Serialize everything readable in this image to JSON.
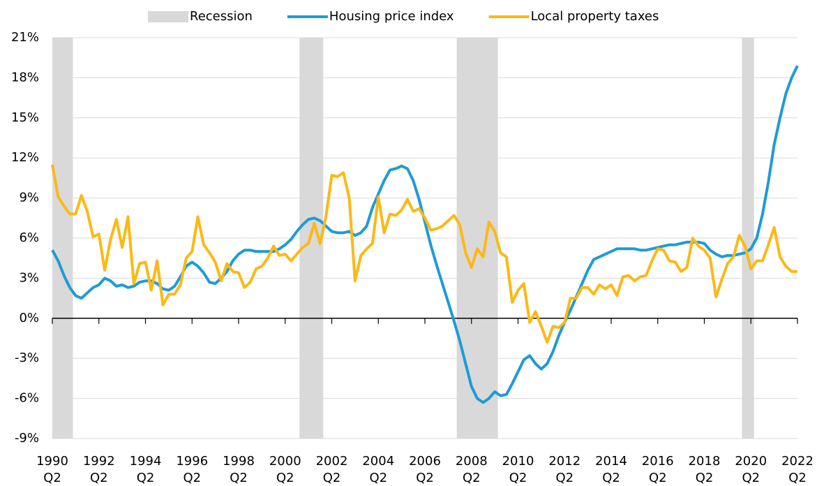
{
  "chart_data": {
    "type": "line",
    "categories": [
      "1990\nQ2",
      null,
      null,
      null,
      null,
      null,
      null,
      null,
      "1992\nQ2",
      null,
      null,
      null,
      null,
      null,
      null,
      null,
      "1994\nQ2",
      null,
      null,
      null,
      null,
      null,
      null,
      null,
      "1996\nQ2",
      null,
      null,
      null,
      null,
      null,
      null,
      null,
      "1998\nQ2",
      null,
      null,
      null,
      null,
      null,
      null,
      null,
      "2000\nQ2",
      null,
      null,
      null,
      null,
      null,
      null,
      null,
      "2002\nQ2",
      null,
      null,
      null,
      null,
      null,
      null,
      null,
      "2004\nQ2",
      null,
      null,
      null,
      null,
      null,
      null,
      null,
      "2006\nQ2",
      null,
      null,
      null,
      null,
      null,
      null,
      null,
      "2008\nQ2",
      null,
      null,
      null,
      null,
      null,
      null,
      null,
      "2010\nQ2",
      null,
      null,
      null,
      null,
      null,
      null,
      null,
      "2012\nQ2",
      null,
      null,
      null,
      null,
      null,
      null,
      null,
      "2014\nQ2",
      null,
      null,
      null,
      null,
      null,
      null,
      null,
      "2016\nQ2",
      null,
      null,
      null,
      null,
      null,
      null,
      null,
      "2018\nQ2",
      null,
      null,
      null,
      null,
      null,
      null,
      null,
      "2020\nQ2",
      null,
      null,
      null,
      null,
      null,
      null,
      null,
      "2022\nQ2"
    ],
    "series": [
      {
        "name": "Recession",
        "color": "#d9d9d9",
        "type": "bar",
        "axis": "y2",
        "values": [
          1,
          1,
          1,
          1,
          null,
          null,
          null,
          null,
          null,
          null,
          null,
          null,
          null,
          null,
          null,
          null,
          null,
          null,
          null,
          null,
          null,
          null,
          null,
          null,
          null,
          null,
          null,
          null,
          null,
          null,
          null,
          null,
          null,
          null,
          null,
          null,
          null,
          null,
          null,
          null,
          null,
          null,
          null,
          1,
          1,
          1,
          1,
          null,
          null,
          null,
          null,
          null,
          null,
          null,
          null,
          null,
          null,
          null,
          null,
          null,
          null,
          null,
          null,
          null,
          null,
          null,
          null,
          null,
          null,
          null,
          1,
          1,
          1,
          1,
          1,
          1,
          1,
          null,
          null,
          null,
          null,
          null,
          null,
          null,
          null,
          null,
          null,
          null,
          null,
          null,
          null,
          null,
          null,
          null,
          null,
          null,
          null,
          null,
          null,
          null,
          null,
          null,
          null,
          null,
          null,
          null,
          null,
          null,
          null,
          null,
          null,
          null,
          null,
          null,
          null,
          null,
          null,
          null,
          null,
          1,
          1,
          null,
          null,
          null,
          null,
          null,
          null,
          null,
          null
        ]
      },
      {
        "name": "Housing price index",
        "color": "#1e9bd7",
        "type": "line",
        "values": [
          5.1,
          4.3,
          3.2,
          2.3,
          1.7,
          1.5,
          1.9,
          2.3,
          2.5,
          3.0,
          2.8,
          2.4,
          2.5,
          2.3,
          2.4,
          2.7,
          2.8,
          2.8,
          2.6,
          2.2,
          2.1,
          2.4,
          3.1,
          3.9,
          4.2,
          3.9,
          3.4,
          2.7,
          2.6,
          3.0,
          3.5,
          4.3,
          4.8,
          5.1,
          5.1,
          5.0,
          5.0,
          5.0,
          5.0,
          5.2,
          5.5,
          5.9,
          6.5,
          7.0,
          7.4,
          7.5,
          7.3,
          6.9,
          6.5,
          6.4,
          6.4,
          6.5,
          6.2,
          6.4,
          6.9,
          8.3,
          9.3,
          10.3,
          11.1,
          11.2,
          11.4,
          11.2,
          10.3,
          8.9,
          7.2,
          5.5,
          4.0,
          2.6,
          1.2,
          -0.2,
          -1.7,
          -3.4,
          -5.1,
          -6.0,
          -6.3,
          -6.0,
          -5.5,
          -5.8,
          -5.7,
          -4.9,
          -4.0,
          -3.1,
          -2.8,
          -3.4,
          -3.8,
          -3.4,
          -2.5,
          -1.3,
          -0.3,
          0.6,
          1.6,
          2.6,
          3.6,
          4.4,
          4.6,
          4.8,
          5.0,
          5.2,
          5.2,
          5.2,
          5.2,
          5.1,
          5.1,
          5.2,
          5.3,
          5.4,
          5.5,
          5.5,
          5.6,
          5.7,
          5.7,
          5.7,
          5.6,
          5.1,
          4.8,
          4.6,
          4.7,
          4.7,
          4.8,
          4.9,
          5.2,
          6.0,
          7.8,
          10.2,
          13.0,
          15.0,
          16.8,
          18.0,
          18.9
        ]
      },
      {
        "name": "Local property taxes",
        "color": "#fbb917",
        "type": "line",
        "values": [
          11.5,
          9.1,
          8.4,
          7.8,
          7.8,
          9.2,
          8.0,
          6.1,
          6.3,
          3.6,
          5.9,
          7.4,
          5.3,
          7.6,
          2.6,
          4.1,
          4.2,
          2.1,
          4.3,
          1.0,
          1.8,
          1.8,
          2.5,
          4.5,
          5.0,
          7.6,
          5.5,
          4.9,
          4.2,
          2.8,
          4.1,
          3.5,
          3.4,
          2.3,
          2.7,
          3.7,
          3.9,
          4.5,
          5.4,
          4.7,
          4.8,
          4.3,
          4.8,
          5.3,
          5.6,
          7.1,
          5.6,
          7.6,
          10.7,
          10.6,
          10.9,
          9.0,
          2.8,
          4.7,
          5.2,
          5.6,
          9.1,
          6.4,
          7.8,
          7.7,
          8.1,
          8.9,
          8.0,
          8.2,
          7.5,
          6.6,
          6.7,
          6.9,
          7.3,
          7.7,
          7.0,
          4.9,
          3.8,
          5.2,
          4.6,
          7.2,
          6.5,
          4.9,
          4.6,
          1.2,
          2.1,
          2.6,
          -0.3,
          0.5,
          -0.6,
          -1.8,
          -0.6,
          -0.7,
          -0.3,
          1.5,
          1.5,
          2.3,
          2.3,
          1.8,
          2.5,
          2.2,
          2.5,
          1.7,
          3.1,
          3.2,
          2.8,
          3.1,
          3.2,
          4.3,
          5.2,
          5.1,
          4.3,
          4.2,
          3.5,
          3.8,
          6.0,
          5.4,
          5.1,
          4.5,
          1.6,
          2.9,
          4.1,
          4.6,
          6.2,
          5.4,
          3.7,
          4.3,
          4.3,
          5.5,
          6.8,
          4.6,
          3.9,
          3.5,
          3.5
        ]
      }
    ],
    "ylim": [
      -9,
      21
    ],
    "yticks": [
      {
        "value": -9,
        "label": "-9%"
      },
      {
        "value": -6,
        "label": "-6%"
      },
      {
        "value": -3,
        "label": "-3%"
      },
      {
        "value": 0,
        "label": "0%"
      },
      {
        "value": 3,
        "label": "3%"
      },
      {
        "value": 6,
        "label": "6%"
      },
      {
        "value": 9,
        "label": "9%"
      },
      {
        "value": 12,
        "label": "12%"
      },
      {
        "value": 15,
        "label": "15%"
      },
      {
        "value": 18,
        "label": "18%"
      },
      {
        "value": 21,
        "label": "21%"
      }
    ],
    "y2lim": [
      0,
      1
    ],
    "grid": true,
    "legend": "top"
  }
}
